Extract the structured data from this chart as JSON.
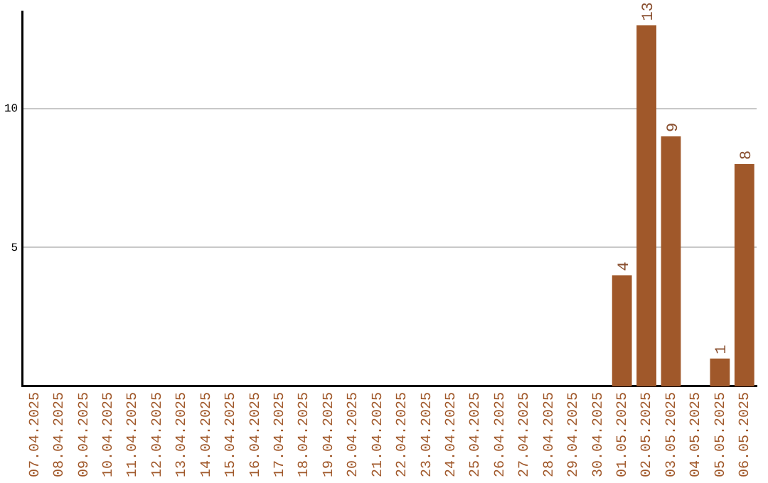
{
  "chart_data": {
    "type": "bar",
    "categories": [
      "07.04.2025",
      "08.04.2025",
      "09.04.2025",
      "10.04.2025",
      "11.04.2025",
      "12.04.2025",
      "13.04.2025",
      "14.04.2025",
      "15.04.2025",
      "16.04.2025",
      "17.04.2025",
      "18.04.2025",
      "19.04.2025",
      "20.04.2025",
      "21.04.2025",
      "22.04.2025",
      "23.04.2025",
      "24.04.2025",
      "25.04.2025",
      "26.04.2025",
      "27.04.2025",
      "28.04.2025",
      "29.04.2025",
      "30.04.2025",
      "01.05.2025",
      "02.05.2025",
      "03.05.2025",
      "04.05.2025",
      "05.05.2025",
      "06.05.2025"
    ],
    "values": [
      0,
      0,
      0,
      0,
      0,
      0,
      0,
      0,
      0,
      0,
      0,
      0,
      0,
      0,
      0,
      0,
      0,
      0,
      0,
      0,
      0,
      0,
      0,
      0,
      4,
      13,
      9,
      0,
      1,
      8
    ],
    "value_labels": [
      null,
      null,
      null,
      null,
      null,
      null,
      null,
      null,
      null,
      null,
      null,
      null,
      null,
      null,
      null,
      null,
      null,
      null,
      null,
      null,
      null,
      null,
      null,
      null,
      "4",
      "13",
      "9",
      null,
      "1",
      "8"
    ],
    "color": "#a0582a",
    "ylim": [
      0,
      13.5
    ],
    "yticks": [
      5,
      10
    ],
    "grid": "y",
    "legend": false
  }
}
